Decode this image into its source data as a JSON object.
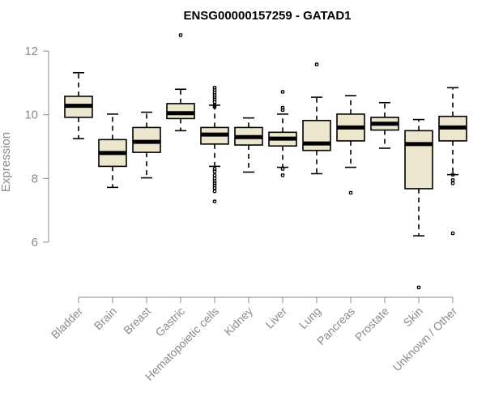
{
  "chart_data": {
    "type": "box",
    "title": "ENSG00000157259 - GATAD1",
    "ylabel": "Expression",
    "xlabel": "",
    "ylim": [
      4.3,
      12.6
    ],
    "yticks": [
      6,
      8,
      10,
      12
    ],
    "grid": false,
    "categories": [
      "Bladder",
      "Brain",
      "Breast",
      "Gastric",
      "Hematopoietic cells",
      "Kidney",
      "Liver",
      "Lung",
      "Pancreas",
      "Prostate",
      "Skin",
      "Unknown / Other"
    ],
    "boxes": [
      {
        "category": "Bladder",
        "whisker_low": 9.25,
        "q1": 9.92,
        "median": 10.28,
        "q3": 10.58,
        "whisker_high": 11.32,
        "outliers": []
      },
      {
        "category": "Brain",
        "whisker_low": 7.72,
        "q1": 8.38,
        "median": 8.8,
        "q3": 9.22,
        "whisker_high": 10.02,
        "outliers": []
      },
      {
        "category": "Breast",
        "whisker_low": 8.02,
        "q1": 8.82,
        "median": 9.15,
        "q3": 9.6,
        "whisker_high": 10.08,
        "outliers": []
      },
      {
        "category": "Gastric",
        "whisker_low": 9.5,
        "q1": 9.88,
        "median": 10.05,
        "q3": 10.35,
        "whisker_high": 10.8,
        "outliers": [
          12.5
        ]
      },
      {
        "category": "Hematopoietic cells",
        "whisker_low": 8.38,
        "q1": 9.08,
        "median": 9.38,
        "q3": 9.6,
        "whisker_high": 10.3,
        "outliers": [
          10.85,
          10.78,
          10.7,
          10.62,
          10.55,
          10.48,
          10.4,
          10.3,
          10.25,
          8.3,
          8.22,
          8.1,
          8.0,
          7.92,
          7.85,
          7.78,
          7.7,
          7.6,
          7.28
        ]
      },
      {
        "category": "Kidney",
        "whisker_low": 8.2,
        "q1": 9.05,
        "median": 9.3,
        "q3": 9.6,
        "whisker_high": 9.9,
        "outliers": []
      },
      {
        "category": "Liver",
        "whisker_low": 8.35,
        "q1": 9.02,
        "median": 9.25,
        "q3": 9.45,
        "whisker_high": 10.02,
        "outliers": [
          10.72,
          10.22,
          10.15,
          8.3,
          8.1
        ]
      },
      {
        "category": "Lung",
        "whisker_low": 8.15,
        "q1": 8.88,
        "median": 9.1,
        "q3": 9.82,
        "whisker_high": 10.55,
        "outliers": [
          11.58
        ]
      },
      {
        "category": "Pancreas",
        "whisker_low": 8.35,
        "q1": 9.18,
        "median": 9.6,
        "q3": 10.02,
        "whisker_high": 10.6,
        "outliers": [
          7.55
        ]
      },
      {
        "category": "Prostate",
        "whisker_low": 8.95,
        "q1": 9.52,
        "median": 9.72,
        "q3": 9.92,
        "whisker_high": 10.38,
        "outliers": []
      },
      {
        "category": "Skin",
        "whisker_low": 6.2,
        "q1": 7.68,
        "median": 9.08,
        "q3": 9.5,
        "whisker_high": 9.85,
        "outliers": [
          4.58
        ]
      },
      {
        "category": "Unknown / Other",
        "whisker_low": 8.12,
        "q1": 9.18,
        "median": 9.6,
        "q3": 9.95,
        "whisker_high": 10.85,
        "outliers": [
          8.12,
          7.95,
          7.85,
          6.28
        ]
      }
    ]
  }
}
